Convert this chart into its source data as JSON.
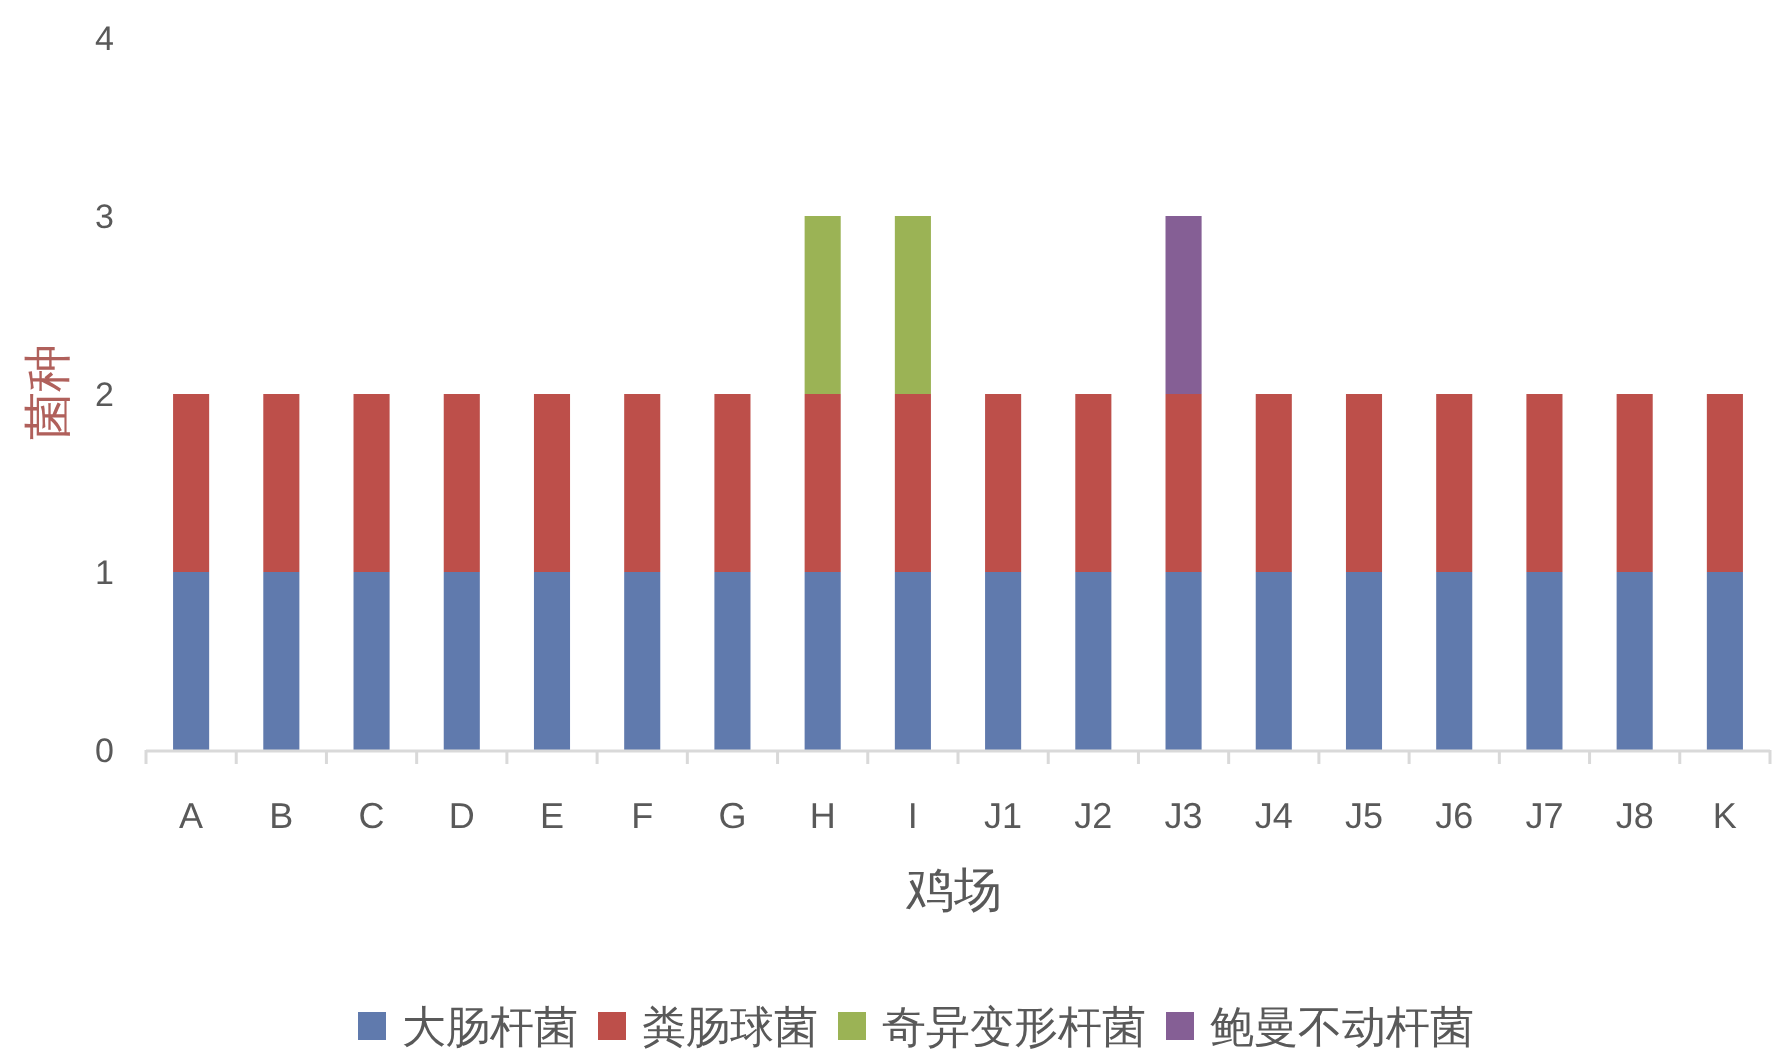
{
  "chart_data": {
    "type": "bar",
    "stacked": true,
    "categories": [
      "A",
      "B",
      "C",
      "D",
      "E",
      "F",
      "G",
      "H",
      "I",
      "J1",
      "J2",
      "J3",
      "J4",
      "J5",
      "J6",
      "J7",
      "J8",
      "K"
    ],
    "series": [
      {
        "name": "大肠杆菌",
        "color": "#607aad",
        "values": [
          1,
          1,
          1,
          1,
          1,
          1,
          1,
          1,
          1,
          1,
          1,
          1,
          1,
          1,
          1,
          1,
          1,
          1
        ]
      },
      {
        "name": "粪肠球菌",
        "color": "#bd4f4a",
        "values": [
          1,
          1,
          1,
          1,
          1,
          1,
          1,
          1,
          1,
          1,
          1,
          1,
          1,
          1,
          1,
          1,
          1,
          1
        ]
      },
      {
        "name": "奇异变形杆菌",
        "color": "#9bb355",
        "values": [
          null,
          null,
          null,
          null,
          null,
          null,
          null,
          1,
          1,
          null,
          null,
          null,
          null,
          null,
          null,
          null,
          null,
          null
        ]
      },
      {
        "name": "鲍曼不动杆菌",
        "color": "#855f95",
        "values": [
          null,
          null,
          null,
          null,
          null,
          null,
          null,
          null,
          null,
          null,
          null,
          1,
          null,
          null,
          null,
          null,
          null,
          null
        ]
      }
    ],
    "xlabel": "鸡场",
    "ylabel": "菌种",
    "ylim": [
      0,
      4
    ],
    "yticks": [
      0,
      1,
      2,
      3,
      4
    ],
    "legend": "bottom"
  }
}
